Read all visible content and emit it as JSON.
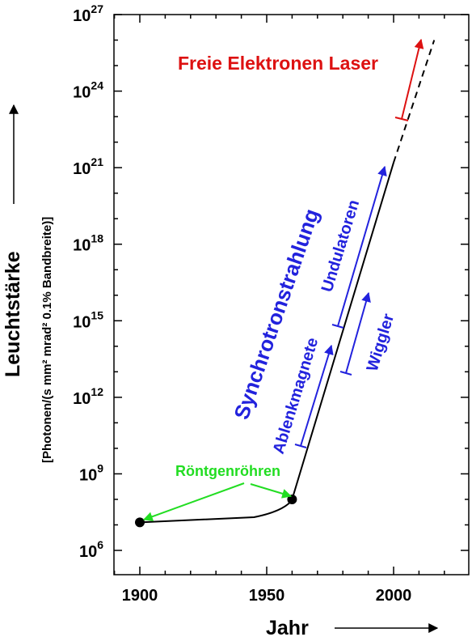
{
  "chart_data": {
    "type": "line",
    "title": "",
    "xlabel": "Jahr",
    "ylabel": "Leuchtstärke",
    "ylabel_units": "[Photonen/(s mm² mrad² 0.1% Bandbreite)]",
    "xlim": [
      1890,
      2020
    ],
    "ylim_log10": [
      5,
      27
    ],
    "y_scale": "log",
    "grid": false,
    "x_ticks": [
      1900,
      1950,
      2000
    ],
    "y_ticks": [
      {
        "base": "10",
        "exp": "6",
        "log10": 6
      },
      {
        "base": "10",
        "exp": "9",
        "log10": 9
      },
      {
        "base": "10",
        "exp": "12",
        "log10": 12
      },
      {
        "base": "10",
        "exp": "15",
        "log10": 15
      },
      {
        "base": "10",
        "exp": "18",
        "log10": 18
      },
      {
        "base": "10",
        "exp": "21",
        "log10": 21
      },
      {
        "base": "10",
        "exp": "24",
        "log10": 24
      },
      {
        "base": "10",
        "exp": "27",
        "log10": 27
      }
    ],
    "series": [
      {
        "style": "solid",
        "color": "#000000",
        "points_log10": [
          [
            1900,
            7.1
          ],
          [
            1925,
            7.2
          ],
          [
            1945,
            7.3
          ],
          [
            1955,
            7.5
          ],
          [
            1959,
            7.8
          ],
          [
            1960,
            8.0
          ],
          [
            2000,
            21.2
          ]
        ]
      },
      {
        "style": "dashed",
        "color": "#000000",
        "points_log10": [
          [
            2000,
            21.2
          ],
          [
            2016,
            26.0
          ]
        ]
      }
    ],
    "markers_log10": [
      [
        1900,
        7.1
      ],
      [
        1960,
        8.0
      ]
    ],
    "annotations": [
      {
        "text": "Freie Elektronen Laser",
        "color": "#dd1111"
      },
      {
        "text": "Synchrotronstrahlung",
        "color": "#2222dd"
      },
      {
        "text": "Undulatoren",
        "color": "#2222dd"
      },
      {
        "text": "Ablenkmagnete",
        "color": "#2222dd"
      },
      {
        "text": "Wiggler",
        "color": "#2222dd"
      },
      {
        "text": "Röntgenröhren",
        "color": "#22dd22"
      }
    ]
  },
  "colors": {
    "fel": "#dd1111",
    "synchrotron": "#2222dd",
    "xray": "#22dd22",
    "axis": "#000000"
  }
}
